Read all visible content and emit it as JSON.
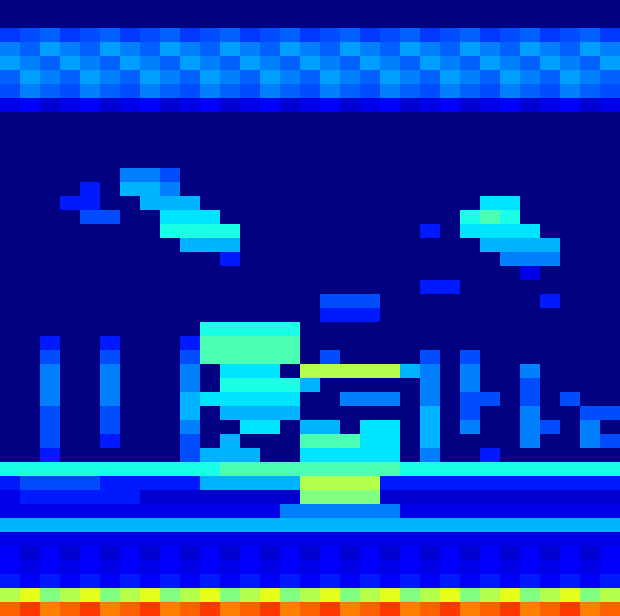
{
  "chart_data": {
    "type": "heatmap",
    "tick_labels": false,
    "color": "jet",
    "xlim": [
      0,
      31
    ],
    "ylim": [
      0,
      44
    ],
    "zlim": [
      0,
      1
    ],
    "cells": [
      [
        0,
        0,
        0,
        0,
        0,
        0,
        0,
        0,
        0,
        0,
        0,
        0,
        0,
        0,
        0,
        0,
        0,
        0,
        0,
        0,
        0,
        0,
        0,
        0,
        0,
        0,
        0,
        0,
        0,
        0,
        0
      ],
      [
        0,
        0,
        0,
        0,
        0,
        0,
        0,
        0,
        0,
        0,
        0,
        0,
        0,
        0,
        0,
        0,
        0,
        0,
        0,
        0,
        0,
        0,
        0,
        0,
        0,
        0,
        0,
        0,
        0,
        0,
        0
      ],
      [
        0.18,
        0.2,
        0.22,
        0.18,
        0.2,
        0.22,
        0.18,
        0.2,
        0.22,
        0.18,
        0.2,
        0.22,
        0.18,
        0.2,
        0.22,
        0.18,
        0.2,
        0.22,
        0.18,
        0.2,
        0.22,
        0.18,
        0.2,
        0.22,
        0.18,
        0.2,
        0.22,
        0.18,
        0.2,
        0.22,
        0.18
      ],
      [
        0.25,
        0.22,
        0.28,
        0.25,
        0.22,
        0.28,
        0.25,
        0.22,
        0.28,
        0.25,
        0.22,
        0.28,
        0.25,
        0.22,
        0.28,
        0.25,
        0.22,
        0.28,
        0.25,
        0.22,
        0.28,
        0.25,
        0.22,
        0.28,
        0.25,
        0.22,
        0.28,
        0.25,
        0.22,
        0.28,
        0.25
      ],
      [
        0.28,
        0.25,
        0.22,
        0.28,
        0.25,
        0.22,
        0.28,
        0.25,
        0.22,
        0.28,
        0.25,
        0.22,
        0.28,
        0.25,
        0.22,
        0.28,
        0.25,
        0.22,
        0.28,
        0.25,
        0.22,
        0.28,
        0.25,
        0.22,
        0.28,
        0.25,
        0.22,
        0.28,
        0.25,
        0.22,
        0.28
      ],
      [
        0.22,
        0.28,
        0.25,
        0.22,
        0.28,
        0.25,
        0.22,
        0.28,
        0.25,
        0.22,
        0.28,
        0.25,
        0.22,
        0.28,
        0.25,
        0.22,
        0.28,
        0.25,
        0.22,
        0.28,
        0.25,
        0.22,
        0.28,
        0.25,
        0.22,
        0.28,
        0.25,
        0.22,
        0.28,
        0.25,
        0.22
      ],
      [
        0.2,
        0.25,
        0.22,
        0.2,
        0.25,
        0.22,
        0.2,
        0.25,
        0.22,
        0.2,
        0.25,
        0.22,
        0.2,
        0.25,
        0.22,
        0.2,
        0.25,
        0.22,
        0.2,
        0.25,
        0.22,
        0.2,
        0.25,
        0.22,
        0.2,
        0.25,
        0.22,
        0.2,
        0.25,
        0.22,
        0.2
      ],
      [
        0.1,
        0.12,
        0.08,
        0.1,
        0.12,
        0.08,
        0.1,
        0.12,
        0.08,
        0.1,
        0.12,
        0.08,
        0.1,
        0.12,
        0.08,
        0.1,
        0.12,
        0.08,
        0.1,
        0.12,
        0.08,
        0.1,
        0.12,
        0.08,
        0.1,
        0.12,
        0.08,
        0.1,
        0.12,
        0.08,
        0.1
      ],
      [
        0,
        0,
        0,
        0,
        0,
        0,
        0,
        0,
        0,
        0,
        0,
        0,
        0,
        0,
        0,
        0,
        0,
        0,
        0,
        0,
        0,
        0,
        0,
        0,
        0,
        0,
        0,
        0,
        0,
        0,
        0
      ],
      [
        0,
        0,
        0,
        0,
        0,
        0,
        0,
        0,
        0,
        0,
        0,
        0,
        0,
        0,
        0,
        0,
        0,
        0,
        0,
        0,
        0,
        0,
        0,
        0,
        0,
        0,
        0,
        0,
        0,
        0,
        0
      ],
      [
        0,
        0,
        0,
        0,
        0,
        0,
        0,
        0,
        0,
        0,
        0,
        0,
        0,
        0,
        0,
        0,
        0,
        0,
        0,
        0,
        0,
        0,
        0,
        0,
        0,
        0,
        0,
        0,
        0,
        0,
        0
      ],
      [
        0,
        0,
        0,
        0,
        0,
        0,
        0,
        0,
        0,
        0,
        0,
        0,
        0,
        0,
        0,
        0,
        0,
        0,
        0,
        0,
        0,
        0,
        0,
        0,
        0,
        0,
        0,
        0,
        0,
        0,
        0
      ],
      [
        0,
        0,
        0,
        0,
        0,
        0,
        0.25,
        0.25,
        0.2,
        0,
        0,
        0,
        0,
        0,
        0,
        0,
        0,
        0,
        0,
        0,
        0,
        0,
        0,
        0,
        0,
        0,
        0,
        0,
        0,
        0,
        0
      ],
      [
        0,
        0,
        0,
        0,
        0.15,
        0,
        0.3,
        0.3,
        0.25,
        0,
        0,
        0,
        0,
        0,
        0,
        0,
        0,
        0,
        0,
        0,
        0,
        0,
        0,
        0,
        0,
        0,
        0,
        0,
        0,
        0,
        0
      ],
      [
        0,
        0,
        0,
        0.15,
        0.15,
        0,
        0,
        0.3,
        0.3,
        0.3,
        0,
        0,
        0,
        0,
        0,
        0,
        0,
        0,
        0,
        0,
        0,
        0,
        0,
        0,
        0.35,
        0.35,
        0,
        0,
        0,
        0,
        0
      ],
      [
        0,
        0,
        0,
        0,
        0.2,
        0.2,
        0,
        0,
        0.35,
        0.35,
        0.35,
        0,
        0,
        0,
        0,
        0,
        0,
        0,
        0,
        0,
        0,
        0,
        0,
        0.4,
        0.45,
        0.4,
        0,
        0,
        0,
        0,
        0
      ],
      [
        0,
        0,
        0,
        0,
        0,
        0,
        0,
        0,
        0.4,
        0.4,
        0.4,
        0.4,
        0,
        0,
        0,
        0,
        0,
        0,
        0,
        0,
        0,
        0.15,
        0,
        0.35,
        0.35,
        0.35,
        0.35,
        0,
        0,
        0,
        0
      ],
      [
        0,
        0,
        0,
        0,
        0,
        0,
        0,
        0,
        0,
        0.3,
        0.3,
        0.3,
        0,
        0,
        0,
        0,
        0,
        0,
        0,
        0,
        0,
        0,
        0,
        0,
        0.3,
        0.3,
        0.3,
        0.3,
        0,
        0,
        0
      ],
      [
        0,
        0,
        0,
        0,
        0,
        0,
        0,
        0,
        0,
        0,
        0,
        0.15,
        0,
        0,
        0,
        0,
        0,
        0,
        0,
        0,
        0,
        0,
        0,
        0,
        0,
        0.25,
        0.25,
        0.25,
        0,
        0,
        0
      ],
      [
        0,
        0,
        0,
        0,
        0,
        0,
        0,
        0,
        0,
        0,
        0,
        0,
        0,
        0,
        0,
        0,
        0,
        0,
        0,
        0,
        0,
        0,
        0,
        0,
        0,
        0,
        0.1,
        0,
        0,
        0,
        0
      ],
      [
        0,
        0,
        0,
        0,
        0,
        0,
        0,
        0,
        0,
        0,
        0,
        0,
        0,
        0,
        0,
        0,
        0,
        0,
        0,
        0,
        0,
        0.15,
        0.15,
        0,
        0,
        0,
        0,
        0,
        0,
        0,
        0
      ],
      [
        0,
        0,
        0,
        0,
        0,
        0,
        0,
        0,
        0,
        0,
        0,
        0,
        0,
        0,
        0,
        0,
        0.2,
        0.2,
        0.2,
        0,
        0,
        0,
        0,
        0,
        0,
        0,
        0,
        0.15,
        0,
        0,
        0
      ],
      [
        0,
        0,
        0,
        0,
        0,
        0,
        0,
        0,
        0,
        0,
        0,
        0,
        0,
        0,
        0,
        0,
        0.15,
        0.15,
        0.15,
        0,
        0,
        0,
        0,
        0,
        0,
        0,
        0,
        0,
        0,
        0,
        0
      ],
      [
        0,
        0,
        0,
        0,
        0,
        0,
        0,
        0,
        0,
        0,
        0.4,
        0.4,
        0.4,
        0.4,
        0.4,
        0,
        0,
        0,
        0,
        0,
        0,
        0,
        0,
        0,
        0,
        0,
        0,
        0,
        0,
        0,
        0
      ],
      [
        0,
        0,
        0.15,
        0,
        0,
        0.15,
        0,
        0,
        0,
        0.15,
        0.45,
        0.45,
        0.45,
        0.45,
        0.45,
        0,
        0,
        0,
        0,
        0,
        0,
        0,
        0,
        0,
        0,
        0,
        0,
        0,
        0,
        0,
        0
      ],
      [
        0,
        0,
        0.2,
        0,
        0,
        0.2,
        0,
        0,
        0,
        0.2,
        0.45,
        0.45,
        0.45,
        0.45,
        0.45,
        0,
        0.2,
        0,
        0,
        0,
        0,
        0.2,
        0,
        0.2,
        0,
        0,
        0,
        0,
        0,
        0,
        0
      ],
      [
        0,
        0,
        0.25,
        0,
        0,
        0.25,
        0,
        0,
        0,
        0.25,
        0,
        0.35,
        0.35,
        0.35,
        0,
        0.55,
        0.55,
        0.55,
        0.55,
        0.55,
        0.3,
        0.25,
        0,
        0.25,
        0,
        0,
        0.25,
        0,
        0,
        0,
        0
      ],
      [
        0,
        0,
        0.25,
        0,
        0,
        0.25,
        0,
        0,
        0,
        0.25,
        0,
        0.4,
        0.4,
        0.4,
        0.4,
        0.3,
        0,
        0,
        0,
        0,
        0,
        0.25,
        0,
        0.25,
        0,
        0,
        0.2,
        0,
        0,
        0,
        0
      ],
      [
        0,
        0,
        0.25,
        0,
        0,
        0.25,
        0,
        0,
        0,
        0.3,
        0.35,
        0.35,
        0.35,
        0.35,
        0.35,
        0,
        0,
        0.25,
        0.25,
        0.25,
        0,
        0.25,
        0,
        0.2,
        0.2,
        0,
        0.2,
        0,
        0.2,
        0,
        0
      ],
      [
        0,
        0,
        0.2,
        0,
        0,
        0.2,
        0,
        0,
        0,
        0.3,
        0,
        0.3,
        0.3,
        0.3,
        0.3,
        0,
        0,
        0,
        0,
        0,
        0,
        0.3,
        0,
        0.2,
        0,
        0,
        0.25,
        0,
        0,
        0.2,
        0.2
      ],
      [
        0,
        0,
        0.2,
        0,
        0,
        0.2,
        0,
        0,
        0,
        0.25,
        0,
        0,
        0.35,
        0.35,
        0,
        0.3,
        0.3,
        0,
        0.35,
        0.35,
        0,
        0.3,
        0,
        0.25,
        0,
        0,
        0.25,
        0.2,
        0,
        0.25,
        0
      ],
      [
        0,
        0,
        0.2,
        0,
        0,
        0.15,
        0,
        0,
        0,
        0.2,
        0,
        0.3,
        0,
        0,
        0,
        0.45,
        0.45,
        0.45,
        0.35,
        0.35,
        0,
        0.3,
        0,
        0,
        0,
        0,
        0.25,
        0,
        0,
        0.25,
        0.2
      ],
      [
        0,
        0,
        0.15,
        0,
        0,
        0,
        0,
        0,
        0,
        0.2,
        0.3,
        0.3,
        0.3,
        0,
        0,
        0.35,
        0.35,
        0.35,
        0.35,
        0.35,
        0,
        0.25,
        0,
        0,
        0.15,
        0,
        0,
        0,
        0,
        0,
        0
      ],
      [
        0.4,
        0.4,
        0.4,
        0.4,
        0.4,
        0.4,
        0.4,
        0.4,
        0.4,
        0.4,
        0.4,
        0.45,
        0.45,
        0.45,
        0.45,
        0.45,
        0.45,
        0.45,
        0.45,
        0.45,
        0.4,
        0.4,
        0.4,
        0.4,
        0.4,
        0.4,
        0.4,
        0.4,
        0.4,
        0.4,
        0.4
      ],
      [
        0.15,
        0.2,
        0.2,
        0.2,
        0.2,
        0.15,
        0.15,
        0.15,
        0.15,
        0.15,
        0.3,
        0.3,
        0.3,
        0.3,
        0.3,
        0.55,
        0.55,
        0.55,
        0.55,
        0.15,
        0.15,
        0.15,
        0.15,
        0.15,
        0.15,
        0.15,
        0.15,
        0.15,
        0.15,
        0.15,
        0.15
      ],
      [
        0.1,
        0.15,
        0.15,
        0.15,
        0.15,
        0.15,
        0.15,
        0.08,
        0.08,
        0.08,
        0.08,
        0.08,
        0.08,
        0.08,
        0.08,
        0.5,
        0.5,
        0.5,
        0.5,
        0.08,
        0.08,
        0.08,
        0.08,
        0.08,
        0.08,
        0.08,
        0.08,
        0.08,
        0.08,
        0.08,
        0.08
      ],
      [
        0.1,
        0.1,
        0.1,
        0.1,
        0.1,
        0.1,
        0.1,
        0.1,
        0.1,
        0.1,
        0.1,
        0.1,
        0.1,
        0.1,
        0.25,
        0.25,
        0.25,
        0.25,
        0.25,
        0.25,
        0.1,
        0.1,
        0.1,
        0.1,
        0.1,
        0.1,
        0.1,
        0.1,
        0.1,
        0.1,
        0.1
      ],
      [
        0.3,
        0.3,
        0.3,
        0.3,
        0.3,
        0.3,
        0.3,
        0.3,
        0.3,
        0.3,
        0.3,
        0.3,
        0.3,
        0.3,
        0.3,
        0.3,
        0.3,
        0.3,
        0.3,
        0.3,
        0.3,
        0.3,
        0.3,
        0.3,
        0.3,
        0.3,
        0.3,
        0.3,
        0.3,
        0.3,
        0.3
      ],
      [
        0.1,
        0.1,
        0.1,
        0.1,
        0.1,
        0.1,
        0.1,
        0.1,
        0.1,
        0.1,
        0.1,
        0.1,
        0.1,
        0.1,
        0.1,
        0.1,
        0.1,
        0.1,
        0.1,
        0.1,
        0.1,
        0.1,
        0.1,
        0.1,
        0.1,
        0.1,
        0.1,
        0.1,
        0.1,
        0.1,
        0.1
      ],
      [
        0.12,
        0.08,
        0.12,
        0.08,
        0.12,
        0.08,
        0.12,
        0.08,
        0.12,
        0.08,
        0.12,
        0.08,
        0.12,
        0.08,
        0.12,
        0.08,
        0.12,
        0.08,
        0.12,
        0.08,
        0.12,
        0.08,
        0.12,
        0.08,
        0.12,
        0.08,
        0.12,
        0.08,
        0.12,
        0.08,
        0.12
      ],
      [
        0.12,
        0.1,
        0.12,
        0.1,
        0.12,
        0.1,
        0.12,
        0.1,
        0.12,
        0.1,
        0.12,
        0.1,
        0.12,
        0.1,
        0.12,
        0.1,
        0.12,
        0.1,
        0.12,
        0.1,
        0.12,
        0.1,
        0.12,
        0.1,
        0.12,
        0.1,
        0.12,
        0.1,
        0.12,
        0.1,
        0.12
      ],
      [
        0.15,
        0.12,
        0.15,
        0.12,
        0.15,
        0.12,
        0.15,
        0.12,
        0.15,
        0.12,
        0.15,
        0.12,
        0.15,
        0.12,
        0.15,
        0.12,
        0.15,
        0.12,
        0.15,
        0.12,
        0.15,
        0.12,
        0.15,
        0.12,
        0.15,
        0.12,
        0.15,
        0.12,
        0.15,
        0.12,
        0.15
      ],
      [
        0.55,
        0.6,
        0.5,
        0.55,
        0.6,
        0.5,
        0.55,
        0.6,
        0.5,
        0.55,
        0.6,
        0.5,
        0.55,
        0.6,
        0.5,
        0.55,
        0.6,
        0.5,
        0.55,
        0.6,
        0.5,
        0.55,
        0.6,
        0.5,
        0.55,
        0.6,
        0.5,
        0.55,
        0.6,
        0.5,
        0.55
      ],
      [
        0.78,
        0.82,
        0.75,
        0.78,
        0.82,
        0.75,
        0.78,
        0.82,
        0.75,
        0.78,
        0.82,
        0.75,
        0.78,
        0.82,
        0.75,
        0.78,
        0.82,
        0.75,
        0.78,
        0.82,
        0.75,
        0.78,
        0.82,
        0.75,
        0.78,
        0.82,
        0.75,
        0.78,
        0.82,
        0.75,
        0.78
      ]
    ]
  }
}
